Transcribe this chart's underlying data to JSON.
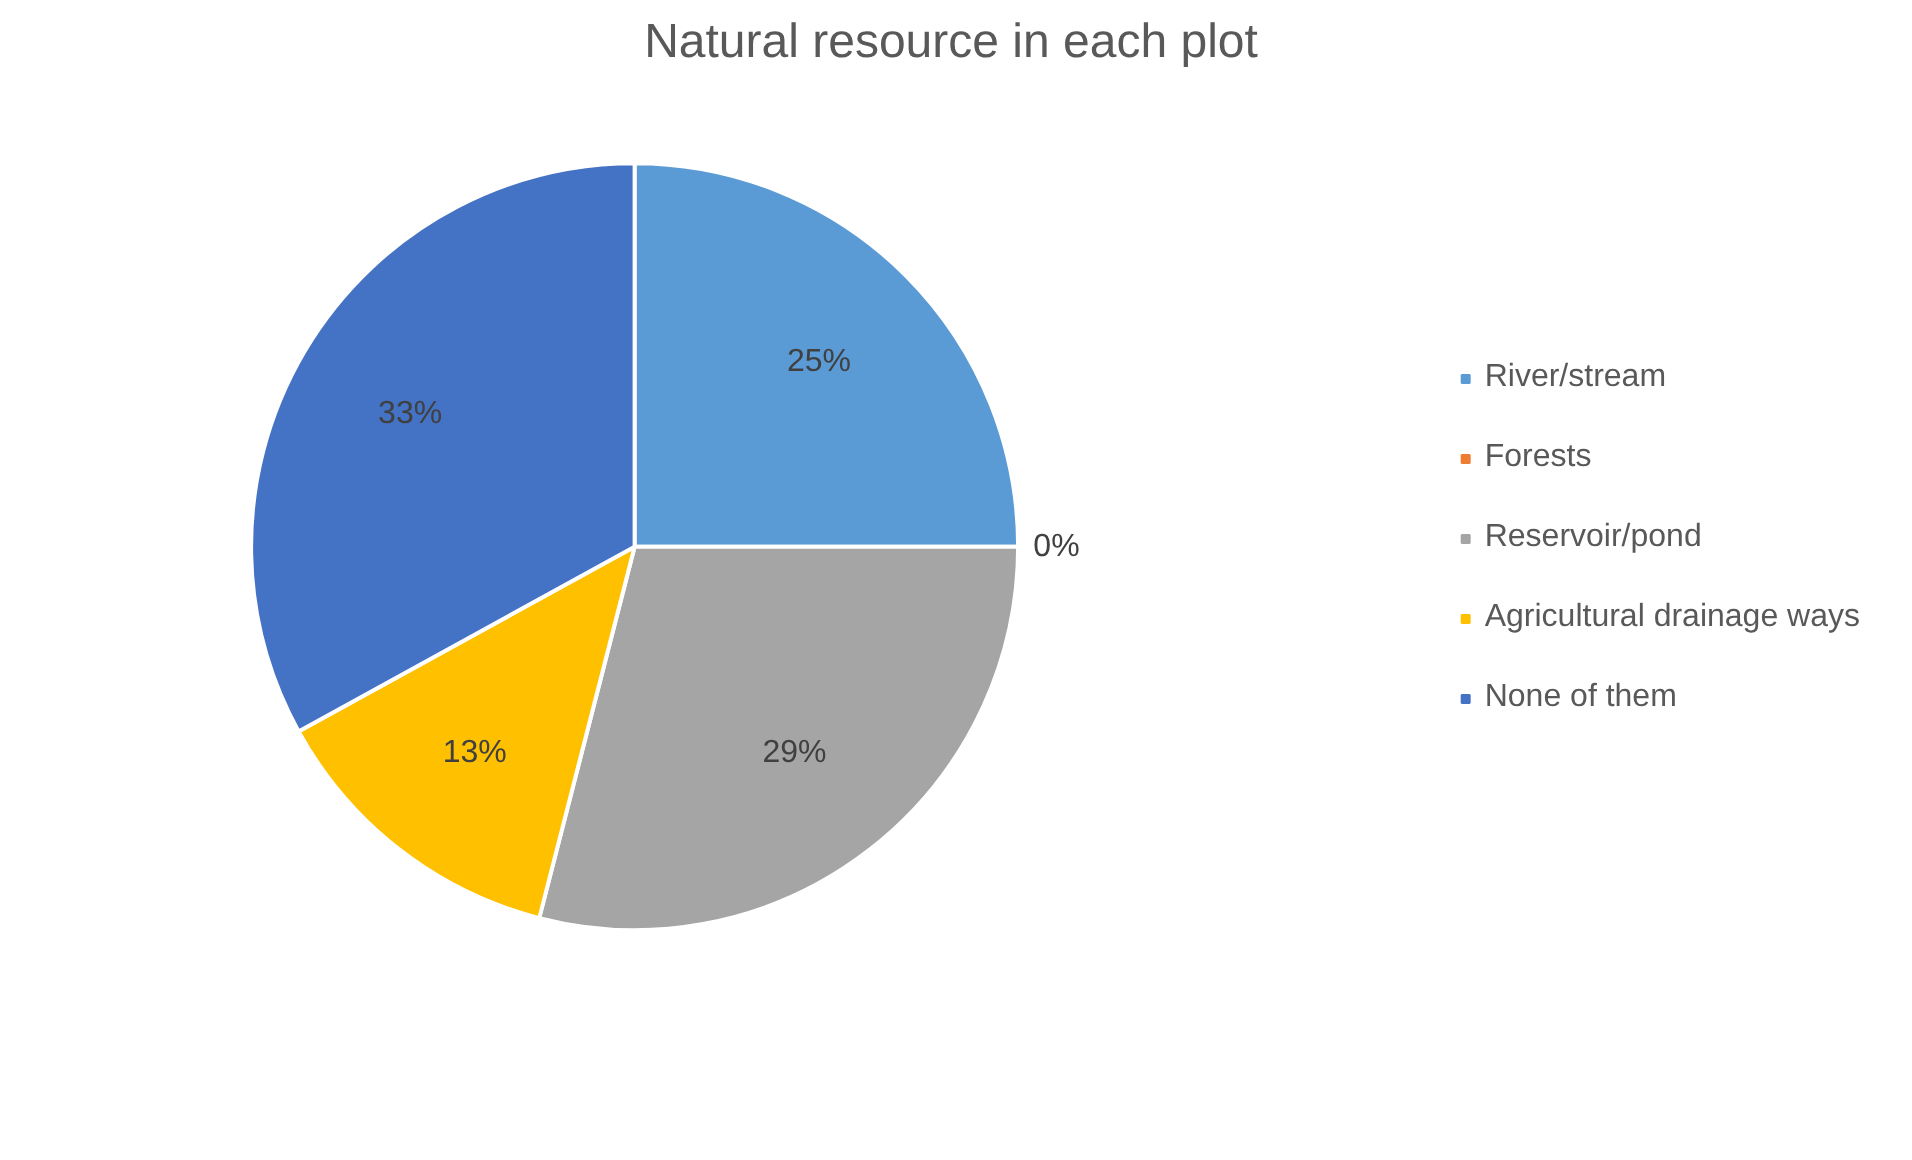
{
  "chart_data": {
    "type": "pie",
    "title": "Natural resource in each plot",
    "categories": [
      "River/stream",
      "Forests",
      "Reservoir/pond",
      "Agricultural drainage ways",
      "None of them"
    ],
    "values": [
      25,
      0,
      29,
      13,
      33
    ],
    "colors": [
      "#5b9bd5",
      "#ed7d31",
      "#a5a5a5",
      "#ffc000",
      "#4472c4"
    ],
    "value_labels": [
      "25%",
      "0%",
      "29%",
      "13%",
      "33%"
    ],
    "legend": "right"
  }
}
